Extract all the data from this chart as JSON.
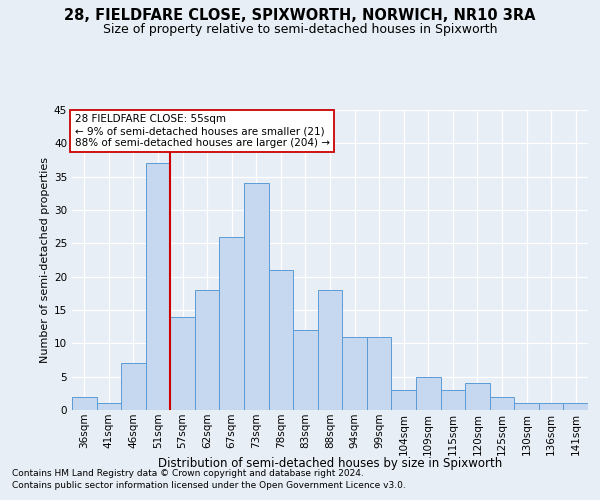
{
  "title1": "28, FIELDFARE CLOSE, SPIXWORTH, NORWICH, NR10 3RA",
  "title2": "Size of property relative to semi-detached houses in Spixworth",
  "xlabel": "Distribution of semi-detached houses by size in Spixworth",
  "ylabel": "Number of semi-detached properties",
  "categories": [
    "36sqm",
    "41sqm",
    "46sqm",
    "51sqm",
    "57sqm",
    "62sqm",
    "67sqm",
    "73sqm",
    "78sqm",
    "83sqm",
    "88sqm",
    "94sqm",
    "99sqm",
    "104sqm",
    "109sqm",
    "115sqm",
    "120sqm",
    "125sqm",
    "130sqm",
    "136sqm",
    "141sqm"
  ],
  "values": [
    2,
    1,
    7,
    37,
    14,
    18,
    26,
    34,
    21,
    12,
    18,
    11,
    11,
    3,
    5,
    3,
    4,
    2,
    1,
    1,
    1
  ],
  "bar_color": "#c5d8f0",
  "bar_edge_color": "#5b9bd5",
  "highlight_index": 3,
  "highlight_line_color": "#cc0000",
  "ylim": [
    0,
    45
  ],
  "yticks": [
    0,
    5,
    10,
    15,
    20,
    25,
    30,
    35,
    40,
    45
  ],
  "annotation_title": "28 FIELDFARE CLOSE: 55sqm",
  "annotation_line1": "← 9% of semi-detached houses are smaller (21)",
  "annotation_line2": "88% of semi-detached houses are larger (204) →",
  "annotation_box_color": "#ffffff",
  "annotation_box_edge": "#cc0000",
  "footnote1": "Contains HM Land Registry data © Crown copyright and database right 2024.",
  "footnote2": "Contains public sector information licensed under the Open Government Licence v3.0.",
  "bg_color": "#e8eef5",
  "grid_color": "#ffffff",
  "title1_fontsize": 10.5,
  "title2_fontsize": 9,
  "tick_fontsize": 7.5,
  "ylabel_fontsize": 8,
  "xlabel_fontsize": 8.5,
  "annotation_fontsize": 7.5,
  "footnote_fontsize": 6.5
}
